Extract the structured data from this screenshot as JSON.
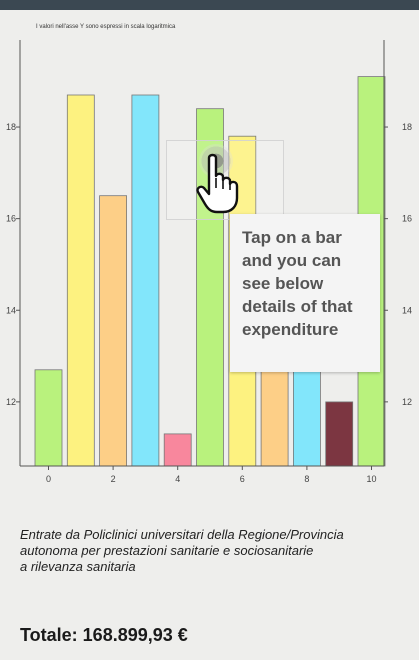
{
  "chart_note": "I valori nell'asse Y sono espressi in scala logaritmica",
  "tooltip_lines": [
    "Tap on a bar",
    "and you can",
    "see below",
    "details of that",
    "expenditure"
  ],
  "description_lines": [
    "Entrate da Policlinici universitari della Regione/Provincia",
    "autonoma per prestazioni sanitarie e sociosanitarie",
    "a rilevanza sanitaria"
  ],
  "total_label": "Totale: 168.899,93 €",
  "icons": [
    "tap-hand-icon"
  ],
  "colors": {
    "background": "#eeeeec",
    "topbar": "#3b4852",
    "axis": "#555555"
  },
  "chart_data": {
    "type": "bar",
    "title": "I valori nell'asse Y sono espressi in scala logaritmica",
    "x": [
      0,
      1,
      2,
      3,
      4,
      5,
      6,
      7,
      8,
      9,
      10
    ],
    "values": [
      12.7,
      18.7,
      16.5,
      18.7,
      11.3,
      18.4,
      17.8,
      13.5,
      14.5,
      12.0,
      19.1
    ],
    "colors": [
      "#b9f27d",
      "#fdf280",
      "#fdcf87",
      "#82e6fb",
      "#f8879d",
      "#b9f27d",
      "#fdf280",
      "#fdcf87",
      "#82e6fb",
      "#7c3641",
      "#b9f27d"
    ],
    "x_ticks": [
      0,
      2,
      4,
      6,
      8,
      10
    ],
    "y_ticks": [
      12,
      14,
      16,
      18
    ],
    "ylim": [
      10.6,
      19.9
    ],
    "left_axis": true,
    "right_axis": true,
    "grid": false
  }
}
